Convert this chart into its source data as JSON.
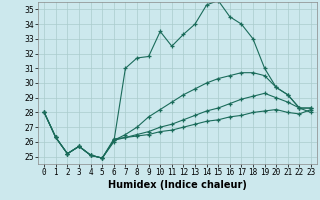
{
  "xlabel": "Humidex (Indice chaleur)",
  "ylabel": "",
  "xlim": [
    -0.5,
    23.5
  ],
  "ylim": [
    24.5,
    35.5
  ],
  "xticks": [
    0,
    1,
    2,
    3,
    4,
    5,
    6,
    7,
    8,
    9,
    10,
    11,
    12,
    13,
    14,
    15,
    16,
    17,
    18,
    19,
    20,
    21,
    22,
    23
  ],
  "yticks": [
    25,
    26,
    27,
    28,
    29,
    30,
    31,
    32,
    33,
    34,
    35
  ],
  "background_color": "#cce8ed",
  "grid_color": "#aacccc",
  "line_color": "#1a6b5a",
  "lines": [
    {
      "x": [
        0,
        1,
        2,
        3,
        4,
        5,
        6,
        7,
        8,
        9,
        10,
        11,
        12,
        13,
        14,
        15,
        16,
        17,
        18,
        19,
        20,
        21,
        22,
        23
      ],
      "y": [
        28.0,
        26.3,
        25.2,
        25.7,
        25.1,
        24.9,
        26.0,
        31.0,
        31.7,
        31.8,
        33.5,
        32.5,
        33.3,
        34.0,
        35.3,
        35.6,
        34.5,
        34.0,
        33.0,
        31.0,
        29.7,
        29.2,
        28.3,
        28.3
      ]
    },
    {
      "x": [
        0,
        1,
        2,
        3,
        4,
        5,
        6,
        7,
        8,
        9,
        10,
        11,
        12,
        13,
        14,
        15,
        16,
        17,
        18,
        19,
        20,
        21,
        22,
        23
      ],
      "y": [
        28.0,
        26.3,
        25.2,
        25.7,
        25.1,
        24.9,
        26.2,
        26.3,
        26.4,
        26.5,
        26.7,
        26.8,
        27.0,
        27.2,
        27.4,
        27.5,
        27.7,
        27.8,
        28.0,
        28.1,
        28.2,
        28.0,
        27.9,
        28.2
      ]
    },
    {
      "x": [
        0,
        1,
        2,
        3,
        4,
        5,
        6,
        7,
        8,
        9,
        10,
        11,
        12,
        13,
        14,
        15,
        16,
        17,
        18,
        19,
        20,
        21,
        22,
        23
      ],
      "y": [
        28.0,
        26.3,
        25.2,
        25.7,
        25.1,
        24.9,
        26.1,
        26.5,
        27.0,
        27.7,
        28.2,
        28.7,
        29.2,
        29.6,
        30.0,
        30.3,
        30.5,
        30.7,
        30.7,
        30.5,
        29.7,
        29.2,
        28.3,
        28.3
      ]
    },
    {
      "x": [
        0,
        1,
        2,
        3,
        4,
        5,
        6,
        7,
        8,
        9,
        10,
        11,
        12,
        13,
        14,
        15,
        16,
        17,
        18,
        19,
        20,
        21,
        22,
        23
      ],
      "y": [
        28.0,
        26.3,
        25.2,
        25.7,
        25.1,
        24.9,
        26.1,
        26.3,
        26.5,
        26.7,
        27.0,
        27.2,
        27.5,
        27.8,
        28.1,
        28.3,
        28.6,
        28.9,
        29.1,
        29.3,
        29.0,
        28.7,
        28.3,
        28.0
      ]
    }
  ],
  "title_fontsize": 8,
  "axis_fontsize": 7,
  "tick_fontsize": 5.5
}
